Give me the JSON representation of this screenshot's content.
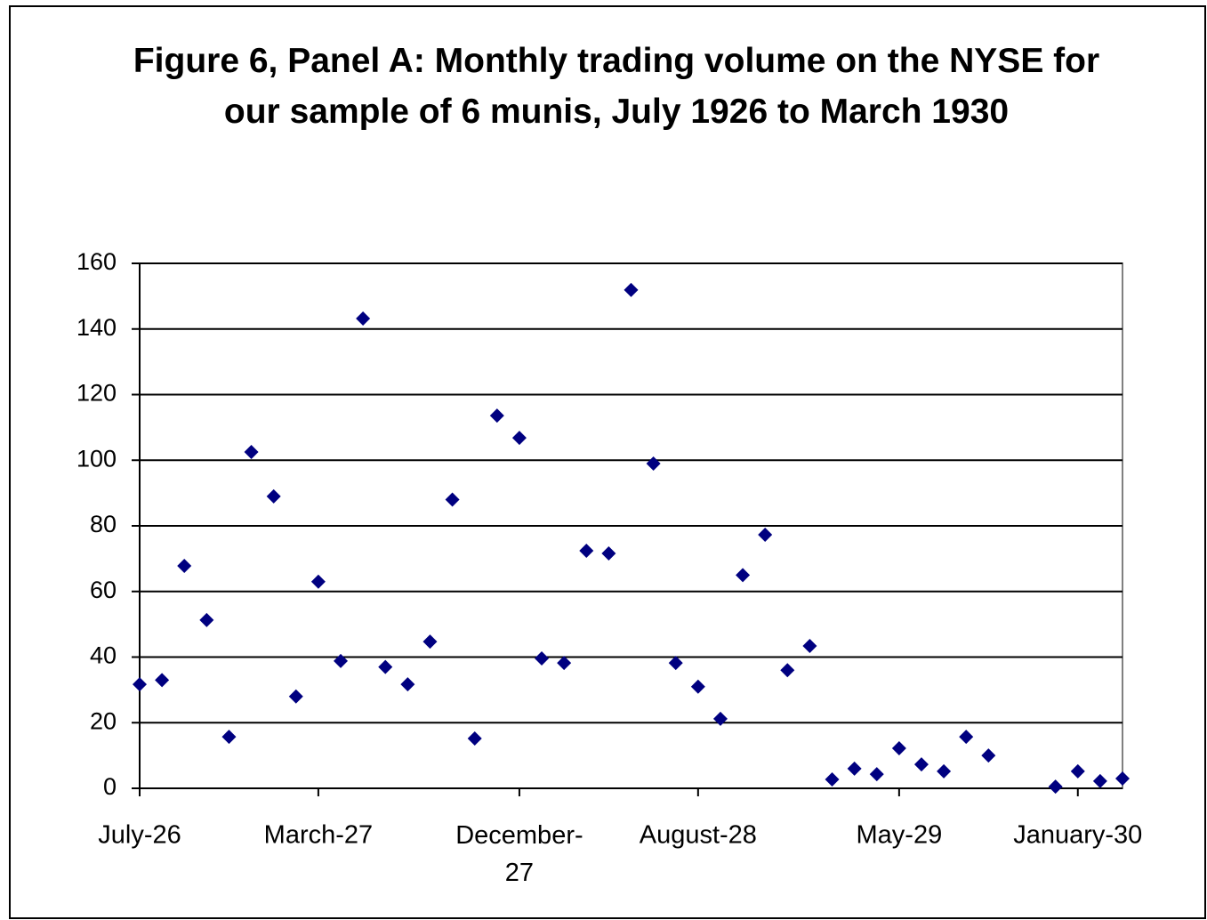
{
  "chart_data": {
    "type": "scatter",
    "title": "Figure 6, Panel A: Monthly trading volume on the NYSE for our sample of 6 munis, July 1926 to March 1930",
    "x": [
      "1926-07",
      "1926-08",
      "1926-09",
      "1926-10",
      "1926-11",
      "1926-12",
      "1927-01",
      "1927-02",
      "1927-03",
      "1927-04",
      "1927-05",
      "1927-06",
      "1927-07",
      "1927-08",
      "1927-09",
      "1927-10",
      "1927-11",
      "1927-12",
      "1928-01",
      "1928-02",
      "1928-03",
      "1928-04",
      "1928-05",
      "1928-06",
      "1928-07",
      "1928-08",
      "1928-09",
      "1928-10",
      "1928-11",
      "1928-12",
      "1929-01",
      "1929-02",
      "1929-03",
      "1929-04",
      "1929-05",
      "1929-06",
      "1929-07",
      "1929-08",
      "1929-09",
      "1929-12",
      "1930-01",
      "1930-02",
      "1930-03"
    ],
    "series": [
      {
        "name": "Monthly trading volume",
        "color": "#000080",
        "values": [
          31.7,
          33,
          67.8,
          51.3,
          15.7,
          102.5,
          89,
          28,
          63,
          38.8,
          143.2,
          37,
          31.7,
          44.7,
          88,
          15.2,
          113.6,
          106.8,
          39.6,
          38.2,
          72.4,
          71.6,
          151.9,
          99,
          38.2,
          31,
          21.2,
          65,
          77.3,
          36,
          43.4,
          2.7,
          6,
          4.3,
          12.2,
          7.3,
          5.2,
          15.7,
          10,
          0.5,
          5.2,
          2.2,
          3
        ]
      }
    ],
    "xlim": [
      "1926-07",
      "1930-03"
    ],
    "xticks": [
      {
        "value": "1926-07",
        "label": "July-26"
      },
      {
        "value": "1927-03",
        "label": "March-27"
      },
      {
        "value": "1927-12",
        "label": "December-27"
      },
      {
        "value": "1928-08",
        "label": "August-28"
      },
      {
        "value": "1929-05",
        "label": "May-29"
      },
      {
        "value": "1930-01",
        "label": "January-30"
      }
    ],
    "ylim": [
      0,
      160
    ],
    "yticks": [
      0,
      20,
      40,
      60,
      80,
      100,
      120,
      140,
      160
    ],
    "grid": true
  }
}
